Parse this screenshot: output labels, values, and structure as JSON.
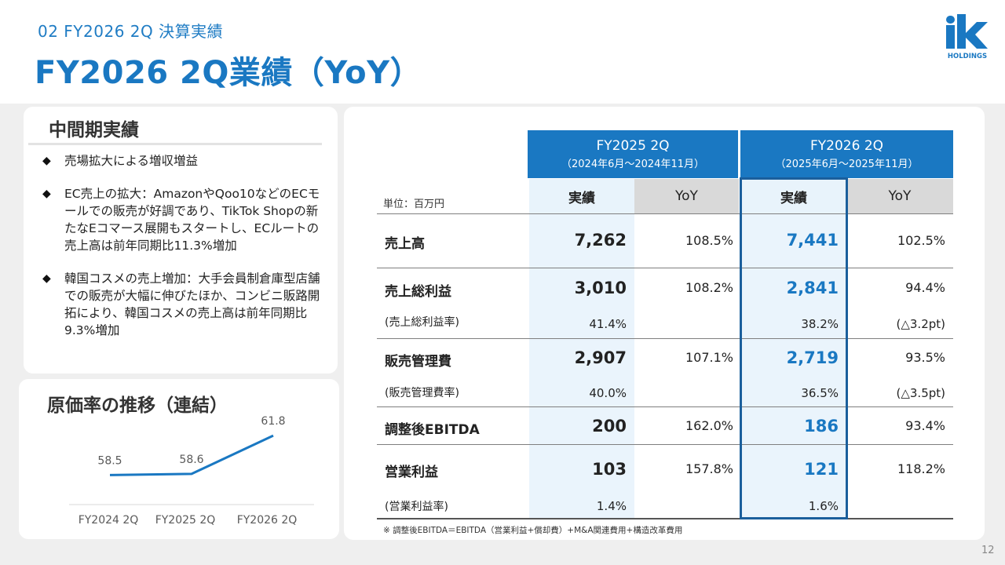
{
  "header": {
    "section": "02  FY2026 2Q  決算実績",
    "title": "FY2026 2Q業績（YoY）",
    "logo_text": "HOLDINGS",
    "logo_mark": "ik"
  },
  "summary": {
    "heading": "中間期実績",
    "bullet_mark": "◆",
    "bullets": [
      "売場拡大による増収増益",
      "EC売上の拡大：AmazonやQoo10などのECモールでの販売が好調であり、TikTok Shopの新たなEコマース展開もスタートし、ECルートの売上高は前年同期比11.3%増加",
      "韓国コスメの売上増加：大手会員制倉庫型店舗での販売が大幅に伸びたほか、コンビニ販路開拓により、韓国コスメの売上高は前年同期比9.3%増加"
    ]
  },
  "cost_chart": {
    "heading": "原価率の推移（連結）",
    "chart_data": {
      "type": "line",
      "title": "",
      "categories": [
        "FY2024 2Q",
        "FY2025 2Q",
        "FY2026 2Q"
      ],
      "series": [
        {
          "values": [
            58.5,
            58.6,
            61.8
          ]
        }
      ],
      "data_labels": [
        "58.5",
        "58.6",
        "61.8"
      ],
      "grid": false,
      "color": "#1a78c2"
    }
  },
  "table": {
    "unit": "単位：百万円",
    "periods": [
      {
        "year": "FY2025  2Q",
        "range": "（2024年6月～2024年11月）"
      },
      {
        "year": "FY2026  2Q",
        "range": "（2025年6月～2025年11月）"
      }
    ],
    "sub_headers": {
      "actual": "実績",
      "yoy": "YoY"
    },
    "rows": [
      {
        "label": "売上高",
        "a1": "7,262",
        "y1": "108.5%",
        "a2": "7,441",
        "y2": "102.5%"
      },
      {
        "label": "売上総利益",
        "a1": "3,010",
        "y1": "108.2%",
        "a2": "2,841",
        "y2": "94.4%",
        "sub": {
          "label": "(売上総利益率)",
          "a1": "41.4%",
          "a2": "38.2%",
          "y2": "(△3.2pt)"
        }
      },
      {
        "label": "販売管理費",
        "a1": "2,907",
        "y1": "107.1%",
        "a2": "2,719",
        "y2": "93.5%",
        "sub": {
          "label": "(販売管理費率)",
          "a1": "40.0%",
          "a2": "36.5%",
          "y2": "(△3.5pt)"
        }
      },
      {
        "label": "調整後EBITDA",
        "a1": "200",
        "y1": "162.0%",
        "a2": "186",
        "y2": "93.4%"
      },
      {
        "label": "営業利益",
        "a1": "103",
        "y1": "157.8%",
        "a2": "121",
        "y2": "118.2%",
        "sub": {
          "label": "(営業利益率)",
          "a1": "1.4%",
          "a2": "1.6%",
          "y2": ""
        }
      }
    ],
    "footnote": "※  調整後EBITDA＝EBITDA（営業利益+償却費）+M&A関連費用+構造改革費用"
  },
  "page_number": "12",
  "colors": {
    "accent": "#1a78c2",
    "highlight_border": "#1b5f9c",
    "yoy_header": "#d9d9d9"
  }
}
